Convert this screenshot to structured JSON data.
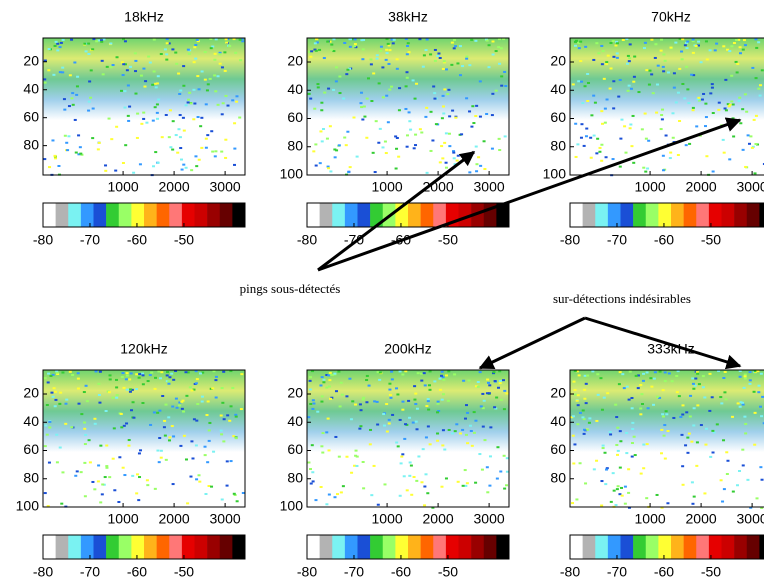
{
  "chart_data": [
    {
      "type": "echogram",
      "title": "18kHz",
      "xlim": [
        -570,
        3390
      ],
      "xticks": [
        1000,
        2000,
        3000
      ],
      "ylim": [
        101,
        3
      ],
      "yticks": [
        20,
        40,
        60,
        80
      ],
      "colorbar": {
        "lim": [
          -80,
          -37
        ],
        "ticks": [
          -80,
          -70,
          -60,
          -50
        ],
        "colors": [
          "#ffffff",
          "#b3b3b3",
          "#7af2f2",
          "#3399ff",
          "#1a4fd6",
          "#33cc33",
          "#99ff66",
          "#ffff33",
          "#ffb31a",
          "#ff6600",
          "#ff7777",
          "#e60000",
          "#cc0000",
          "#990000",
          "#660000",
          "#000000"
        ]
      }
    },
    {
      "type": "echogram",
      "title": "38kHz",
      "xlim": [
        -570,
        3390
      ],
      "xticks": [
        1000,
        2000,
        3000
      ],
      "ylim": [
        100,
        3
      ],
      "yticks": [
        20,
        40,
        60,
        80,
        100
      ],
      "colorbar": {
        "lim": [
          -80,
          -37
        ],
        "ticks": [
          -80,
          -70,
          -60,
          -50
        ],
        "colors": [
          "#ffffff",
          "#b3b3b3",
          "#7af2f2",
          "#3399ff",
          "#1a4fd6",
          "#33cc33",
          "#99ff66",
          "#ffff33",
          "#ffb31a",
          "#ff6600",
          "#ff7777",
          "#e60000",
          "#cc0000",
          "#990000",
          "#660000",
          "#000000"
        ]
      }
    },
    {
      "type": "echogram",
      "title": "70kHz",
      "xlim": [
        -570,
        3390
      ],
      "xticks": [
        1000,
        2000,
        3000
      ],
      "ylim": [
        100,
        3
      ],
      "yticks": [
        20,
        40,
        60,
        80,
        100
      ],
      "colorbar": {
        "lim": [
          -80,
          -37
        ],
        "ticks": [
          -80,
          -70,
          -60,
          -50
        ],
        "colors": [
          "#ffffff",
          "#b3b3b3",
          "#7af2f2",
          "#3399ff",
          "#1a4fd6",
          "#33cc33",
          "#99ff66",
          "#ffff33",
          "#ffb31a",
          "#ff6600",
          "#ff7777",
          "#e60000",
          "#cc0000",
          "#990000",
          "#660000",
          "#000000"
        ]
      }
    },
    {
      "type": "echogram",
      "title": "120kHz",
      "xlim": [
        -570,
        3390
      ],
      "xticks": [
        1000,
        2000,
        3000
      ],
      "ylim": [
        100,
        3
      ],
      "yticks": [
        20,
        40,
        60,
        80,
        100
      ],
      "colorbar": {
        "lim": [
          -80,
          -37
        ],
        "ticks": [
          -80,
          -70,
          -60,
          -50
        ],
        "colors": [
          "#ffffff",
          "#b3b3b3",
          "#7af2f2",
          "#3399ff",
          "#1a4fd6",
          "#33cc33",
          "#99ff66",
          "#ffff33",
          "#ffb31a",
          "#ff6600",
          "#ff7777",
          "#e60000",
          "#cc0000",
          "#990000",
          "#660000",
          "#000000"
        ]
      }
    },
    {
      "type": "echogram",
      "title": "200kHz",
      "xlim": [
        -570,
        3390
      ],
      "xticks": [
        1000,
        2000,
        3000
      ],
      "ylim": [
        100,
        3
      ],
      "yticks": [
        20,
        40,
        60,
        80,
        100
      ],
      "colorbar": {
        "lim": [
          -80,
          -37
        ],
        "ticks": [
          -80,
          -70,
          -60,
          -50
        ],
        "colors": [
          "#ffffff",
          "#b3b3b3",
          "#7af2f2",
          "#3399ff",
          "#1a4fd6",
          "#33cc33",
          "#99ff66",
          "#ffff33",
          "#ffb31a",
          "#ff6600",
          "#ff7777",
          "#e60000",
          "#cc0000",
          "#990000",
          "#660000",
          "#000000"
        ]
      }
    },
    {
      "type": "echogram",
      "title": "333kHz",
      "xlim": [
        -570,
        3390
      ],
      "xticks": [
        1000,
        2000,
        3000
      ],
      "ylim": [
        100,
        3
      ],
      "yticks": [
        20,
        40,
        60,
        80
      ],
      "colorbar": {
        "lim": [
          -80,
          -37
        ],
        "ticks": [
          -80,
          -70,
          -60,
          -50
        ],
        "colors": [
          "#ffffff",
          "#b3b3b3",
          "#7af2f2",
          "#3399ff",
          "#1a4fd6",
          "#33cc33",
          "#99ff66",
          "#ffff33",
          "#ffb31a",
          "#ff6600",
          "#ff7777",
          "#e60000",
          "#cc0000",
          "#990000",
          "#660000",
          "#000000"
        ]
      }
    }
  ],
  "annotations": [
    "pings sous-détectés",
    "sur-détections indésirables"
  ]
}
